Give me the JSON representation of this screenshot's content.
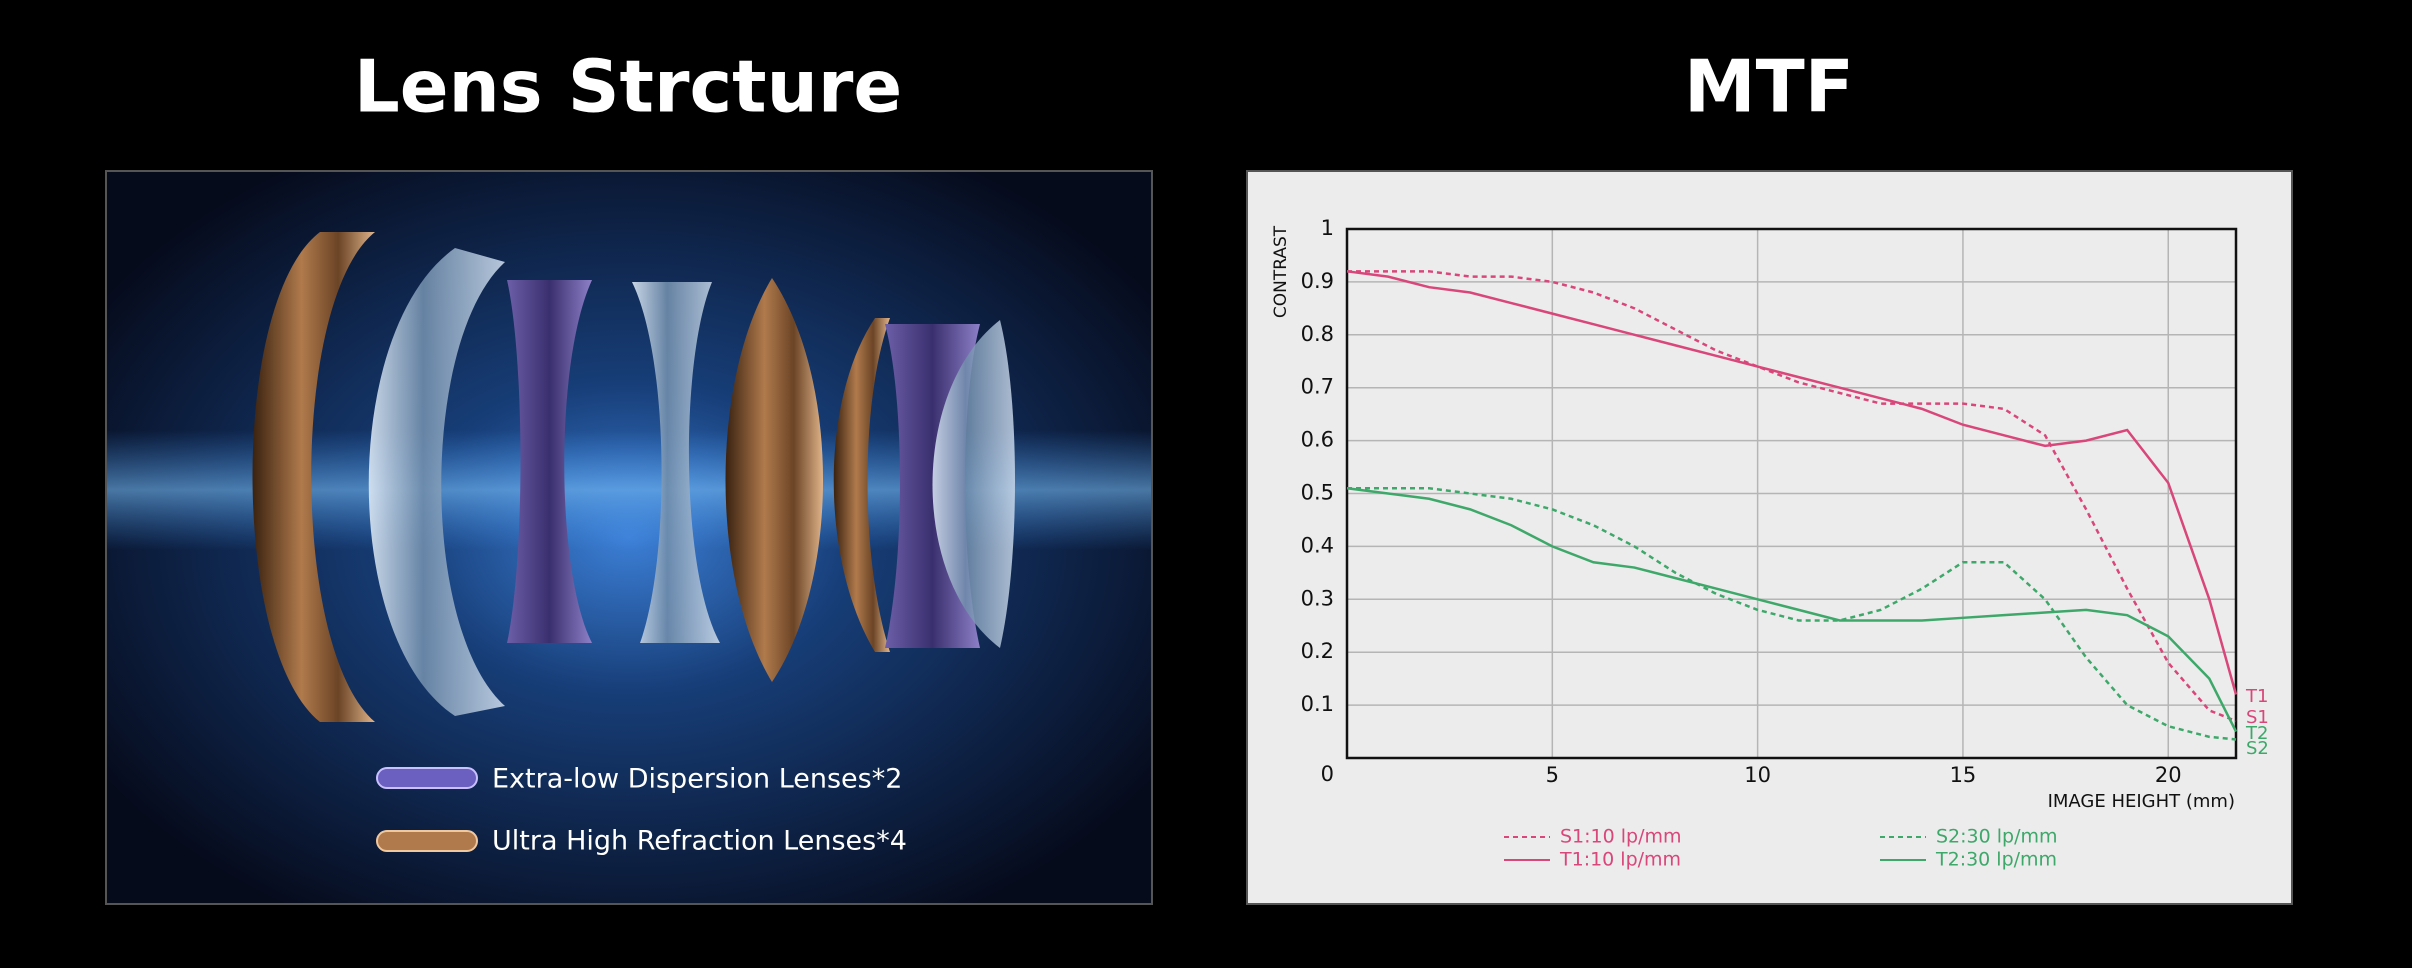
{
  "lens_panel": {
    "title": "Lens Strcture",
    "legend": [
      "Extra-low Dispersion Lenses*2",
      "Ultra High Refraction Lenses*4"
    ]
  },
  "chart_data": {
    "type": "line",
    "title": "MTF",
    "y_label": "CONTRAST",
    "x_label": "IMAGE HEIGHT  (mm)",
    "x": [
      0,
      1,
      2,
      3,
      4,
      5,
      6,
      7,
      8,
      9,
      10,
      11,
      12,
      13,
      14,
      15,
      16,
      17,
      18,
      19,
      20,
      21,
      21.65
    ],
    "xlim": [
      0,
      21.65
    ],
    "xticks": [
      5,
      10,
      15,
      20
    ],
    "ylim": [
      0,
      1
    ],
    "yticks": [
      0,
      0.1,
      0.2,
      0.3,
      0.4,
      0.5,
      0.6,
      0.7,
      0.8,
      0.9,
      1
    ],
    "grid": true,
    "series": [
      {
        "name": "S1:10 lp/mm",
        "end_label": "S1",
        "color": "#d9467a",
        "dashed": true,
        "values": [
          0.92,
          0.92,
          0.92,
          0.91,
          0.91,
          0.9,
          0.88,
          0.85,
          0.81,
          0.77,
          0.74,
          0.71,
          0.69,
          0.67,
          0.67,
          0.67,
          0.66,
          0.61,
          0.47,
          0.32,
          0.18,
          0.09,
          0.07
        ]
      },
      {
        "name": "T1:10 lp/mm",
        "end_label": "T1",
        "color": "#d9467a",
        "dashed": false,
        "values": [
          0.92,
          0.91,
          0.89,
          0.88,
          0.86,
          0.84,
          0.82,
          0.8,
          0.78,
          0.76,
          0.74,
          0.72,
          0.7,
          0.68,
          0.66,
          0.63,
          0.61,
          0.59,
          0.6,
          0.62,
          0.52,
          0.3,
          0.12
        ]
      },
      {
        "name": "S2:30 lp/mm",
        "end_label": "S2",
        "color": "#3ea86a",
        "dashed": true,
        "values": [
          0.51,
          0.51,
          0.51,
          0.5,
          0.49,
          0.47,
          0.44,
          0.4,
          0.35,
          0.31,
          0.28,
          0.26,
          0.26,
          0.28,
          0.32,
          0.37,
          0.37,
          0.3,
          0.19,
          0.1,
          0.06,
          0.04,
          0.035
        ]
      },
      {
        "name": "T2:30 lp/mm",
        "end_label": "T2",
        "color": "#3ea86a",
        "dashed": false,
        "values": [
          0.51,
          0.5,
          0.49,
          0.47,
          0.44,
          0.4,
          0.37,
          0.36,
          0.34,
          0.32,
          0.3,
          0.28,
          0.26,
          0.26,
          0.26,
          0.265,
          0.27,
          0.275,
          0.28,
          0.27,
          0.23,
          0.15,
          0.05
        ]
      }
    ]
  }
}
